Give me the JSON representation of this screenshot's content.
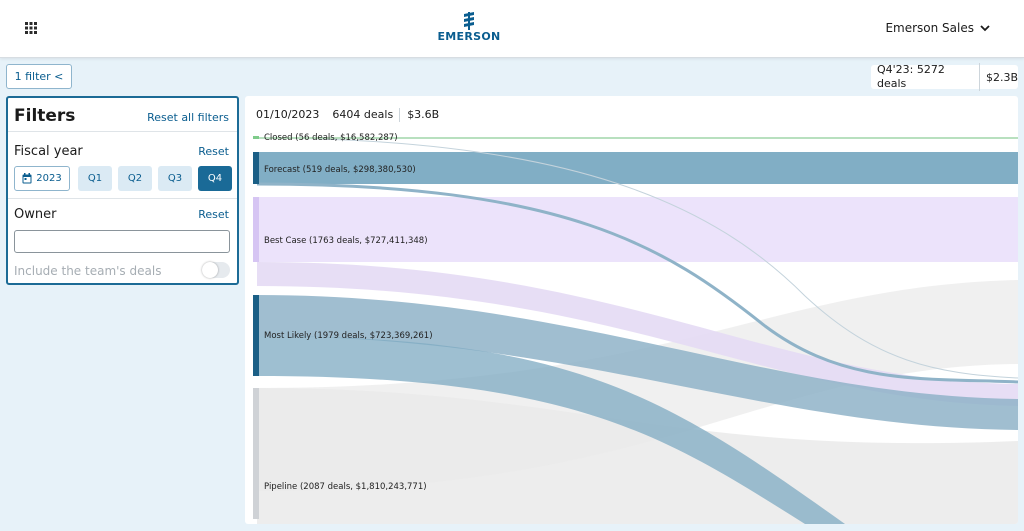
{
  "header": {
    "logo_text": "EMERSON",
    "user_menu_label": "Emerson Sales",
    "apps_icon": "grid-icon",
    "chevron_icon": "chevron-down-icon"
  },
  "filter_toggle": {
    "label": "1 filter <"
  },
  "summary": {
    "quarter_deals": "Q4'23: 5272 deals",
    "amount": "$2.3B"
  },
  "filters": {
    "title": "Filters",
    "reset_all_label": "Reset all filters",
    "fiscal_year": {
      "label": "Fiscal year",
      "reset_label": "Reset",
      "year": "2023",
      "quarters": [
        "Q1",
        "Q2",
        "Q3",
        "Q4"
      ],
      "selected_quarter": "Q4"
    },
    "owner": {
      "label": "Owner",
      "reset_label": "Reset",
      "input_value": "",
      "include_team_label": "Include the team's deals",
      "include_team_enabled": false
    }
  },
  "chart": {
    "date": "01/10/2023",
    "deals": "6404 deals",
    "amount": "$3.6B"
  },
  "chart_data": {
    "type": "sankey",
    "nodes": [
      {
        "name": "Closed",
        "label": "Closed (56 deals, $16,582,287)",
        "deals": 56,
        "amount": 16582287,
        "color": "#7ecb8a"
      },
      {
        "name": "Forecast",
        "label": "Forecast (519 deals, $298,380,530)",
        "deals": 519,
        "amount": 298380530,
        "color": "#1b5f86"
      },
      {
        "name": "Best Case",
        "label": "Best Case (1763 deals, $727,411,348)",
        "deals": 1763,
        "amount": 727411348,
        "color": "#d6c5f3"
      },
      {
        "name": "Most Likely",
        "label": "Most Likely (1979 deals, $723,369,261)",
        "deals": 1979,
        "amount": 723369261,
        "color": "#1b5f86"
      },
      {
        "name": "Pipeline",
        "label": "Pipeline (2087 deals, $1,810,243,771)",
        "deals": 2087,
        "amount": 1810243771,
        "color": "#cfd2d6"
      }
    ],
    "colors": {
      "forecast_band": "#81aec5",
      "best_case_band": "#ebe2fb",
      "most_likely_band": "#7ea9c1",
      "pipeline_band": "#ebebeb"
    }
  }
}
